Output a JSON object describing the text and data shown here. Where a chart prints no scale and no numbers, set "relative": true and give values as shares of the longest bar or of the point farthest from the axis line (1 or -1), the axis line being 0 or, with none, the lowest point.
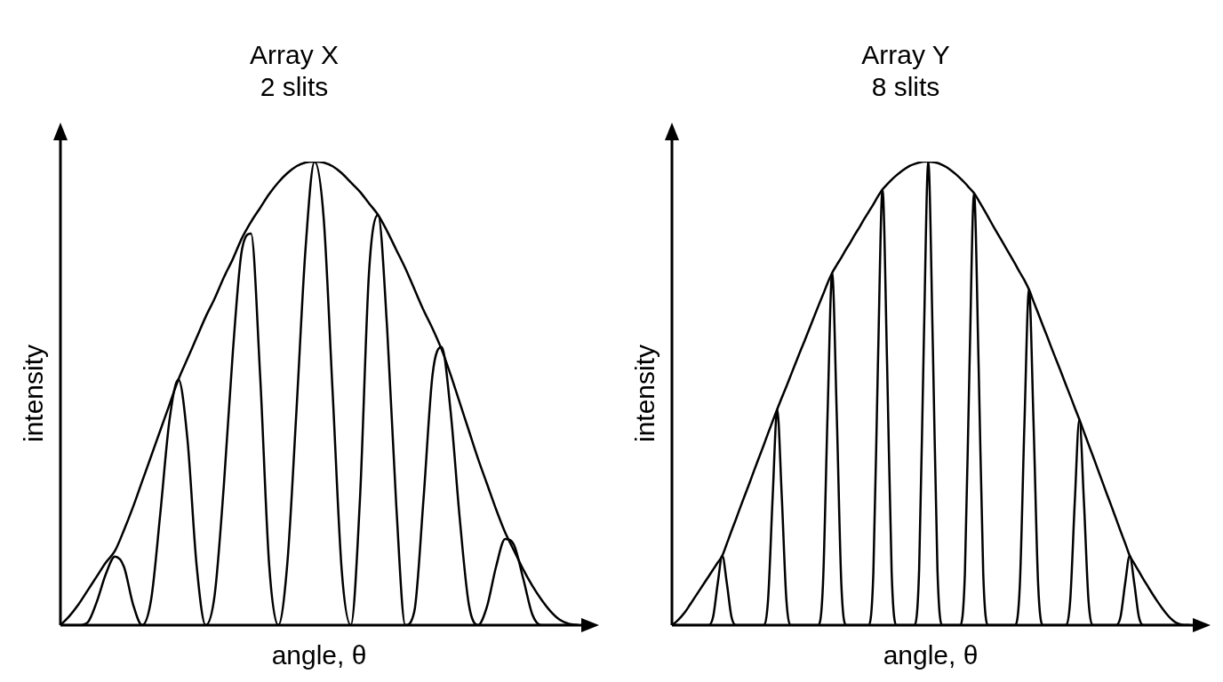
{
  "chart_data": [
    {
      "type": "line",
      "title": "Array X",
      "subtitle": "2 slits",
      "xlabel": "angle, θ",
      "ylabel": "intensity",
      "relative": true,
      "marker": "none",
      "categories": [
        null,
        null,
        null,
        null,
        null,
        null,
        null,
        null,
        null,
        null,
        null,
        null,
        null,
        null,
        null,
        null,
        null,
        null,
        null,
        null,
        null,
        null,
        null,
        null,
        null,
        null,
        null,
        null,
        null,
        null,
        null,
        null,
        null,
        null,
        null,
        null,
        null,
        null,
        null,
        null,
        null,
        null,
        null,
        null,
        null,
        null,
        null,
        null,
        null,
        null,
        null,
        null,
        null,
        null,
        null,
        null,
        null,
        null
      ],
      "series": [
        {
          "color": "#000000",
          "values": [
            0,
            0.02,
            0.045,
            0.075,
            0.105,
            0.135,
            0.16,
            0.205,
            0.255,
            0.31,
            0.365,
            0.42,
            0.475,
            0.53,
            0.575,
            0.62,
            0.665,
            0.705,
            0.75,
            0.79,
            0.835,
            0.87,
            0.9,
            0.93,
            0.955,
            0.975,
            0.99,
            0.998,
            1,
            0.998,
            0.99,
            0.975,
            0.955,
            0.935,
            0.91,
            0.885,
            0.85,
            0.81,
            0.77,
            0.725,
            0.68,
            0.64,
            0.595,
            0.54,
            0.48,
            0.42,
            0.36,
            0.305,
            0.25,
            0.2,
            0.16,
            0.12,
            0.085,
            0.055,
            0.03,
            0.012,
            0.003,
            0
          ]
        },
        {
          "color": "#000000",
          "values": [
            0,
            0,
            0,
            0.006,
            0.05,
            0.11,
            0.148,
            0.126,
            0.045,
            0,
            0.056,
            0.24,
            0.44,
            0.53,
            0.4,
            0.13,
            0,
            0.066,
            0.3,
            0.59,
            0.81,
            0.845,
            0.54,
            0.13,
            0,
            0.133,
            0.46,
            0.81,
            1,
            0.88,
            0.5,
            0.117,
            0,
            0.27,
            0.76,
            0.885,
            0.64,
            0.26,
            0,
            0.03,
            0.27,
            0.54,
            0.6,
            0.46,
            0.23,
            0.045,
            0,
            0.04,
            0.126,
            0.186,
            0.172,
            0.1,
            0.023,
            0,
            0,
            0,
            0,
            0
          ]
        }
      ]
    },
    {
      "type": "line",
      "title": "Array Y",
      "subtitle": "8 slits",
      "xlabel": "angle, θ",
      "ylabel": "intensity",
      "relative": true,
      "marker": "none",
      "categories": [
        null,
        null,
        null,
        null,
        null,
        null,
        null,
        null,
        null,
        null,
        null,
        null,
        null,
        null,
        null,
        null,
        null,
        null,
        null,
        null,
        null,
        null,
        null,
        null,
        null,
        null,
        null,
        null,
        null,
        null,
        null,
        null,
        null,
        null,
        null,
        null,
        null,
        null,
        null,
        null,
        null,
        null,
        null,
        null,
        null,
        null,
        null,
        null,
        null,
        null,
        null,
        null,
        null,
        null,
        null,
        null,
        null,
        null,
        null,
        null,
        null,
        null,
        null,
        null,
        null,
        null,
        null,
        null,
        null,
        null,
        null,
        null,
        null,
        null,
        null,
        null,
        null,
        null,
        null,
        null,
        null,
        null,
        null,
        null,
        null,
        null,
        null,
        null,
        null,
        null,
        null,
        null,
        null,
        null,
        null,
        null,
        null,
        null,
        null,
        null,
        null,
        null,
        null,
        null,
        null,
        null,
        null,
        null,
        null,
        null,
        null,
        null,
        null,
        null
      ],
      "series": [
        {
          "color": "#000000",
          "values": [
            0,
            0.008,
            0.018,
            0.03,
            0.045,
            0.06,
            0.075,
            0.09,
            0.105,
            0.12,
            0.135,
            0.15,
            0.176,
            0.203,
            0.229,
            0.256,
            0.282,
            0.308,
            0.335,
            0.361,
            0.387,
            0.414,
            0.44,
            0.466,
            0.491,
            0.515,
            0.54,
            0.565,
            0.59,
            0.614,
            0.639,
            0.664,
            0.689,
            0.713,
            0.738,
            0.76,
            0.777,
            0.793,
            0.81,
            0.826,
            0.843,
            0.859,
            0.876,
            0.892,
            0.908,
            0.925,
            0.94,
            0.951,
            0.961,
            0.97,
            0.978,
            0.985,
            0.991,
            0.995,
            0.998,
            1,
            1,
            0.999,
            0.997,
            0.993,
            0.988,
            0.981,
            0.973,
            0.964,
            0.954,
            0.943,
            0.932,
            0.916,
            0.899,
            0.882,
            0.864,
            0.847,
            0.83,
            0.813,
            0.796,
            0.779,
            0.761,
            0.744,
            0.724,
            0.698,
            0.673,
            0.647,
            0.622,
            0.596,
            0.571,
            0.546,
            0.52,
            0.495,
            0.469,
            0.444,
            0.417,
            0.39,
            0.364,
            0.337,
            0.31,
            0.283,
            0.257,
            0.23,
            0.203,
            0.177,
            0.15,
            0.133,
            0.116,
            0.099,
            0.083,
            0.067,
            0.052,
            0.038,
            0.025,
            0.014,
            0.006,
            0.002,
            0,
            0
          ]
        },
        {
          "color": "#000000",
          "values": [
            0,
            0,
            0,
            0,
            0,
            0,
            0,
            0,
            0,
            0.018,
            0.09,
            0.15,
            0.09,
            0.018,
            0,
            0,
            0,
            0,
            0,
            0,
            0,
            0.055,
            0.276,
            0.466,
            0.276,
            0.055,
            0,
            0,
            0,
            0,
            0,
            0,
            0,
            0.09,
            0.456,
            0.76,
            0.456,
            0.09,
            0,
            0,
            0,
            0,
            0,
            0,
            0.113,
            0.564,
            0.94,
            0.564,
            0.113,
            0,
            0,
            0,
            0,
            0,
            0.12,
            0.6,
            1,
            0.6,
            0.12,
            0,
            0,
            0,
            0,
            0,
            0.112,
            0.558,
            0.932,
            0.558,
            0.112,
            0,
            0,
            0,
            0,
            0,
            0,
            0,
            0.087,
            0.434,
            0.724,
            0.434,
            0.087,
            0,
            0,
            0,
            0,
            0,
            0,
            0.053,
            0.266,
            0.444,
            0.266,
            0.053,
            0,
            0,
            0,
            0,
            0,
            0,
            0.018,
            0.09,
            0.15,
            0.09,
            0.018,
            0,
            0,
            0,
            0,
            0,
            0,
            0,
            0,
            0,
            0,
            0
          ]
        }
      ]
    }
  ]
}
